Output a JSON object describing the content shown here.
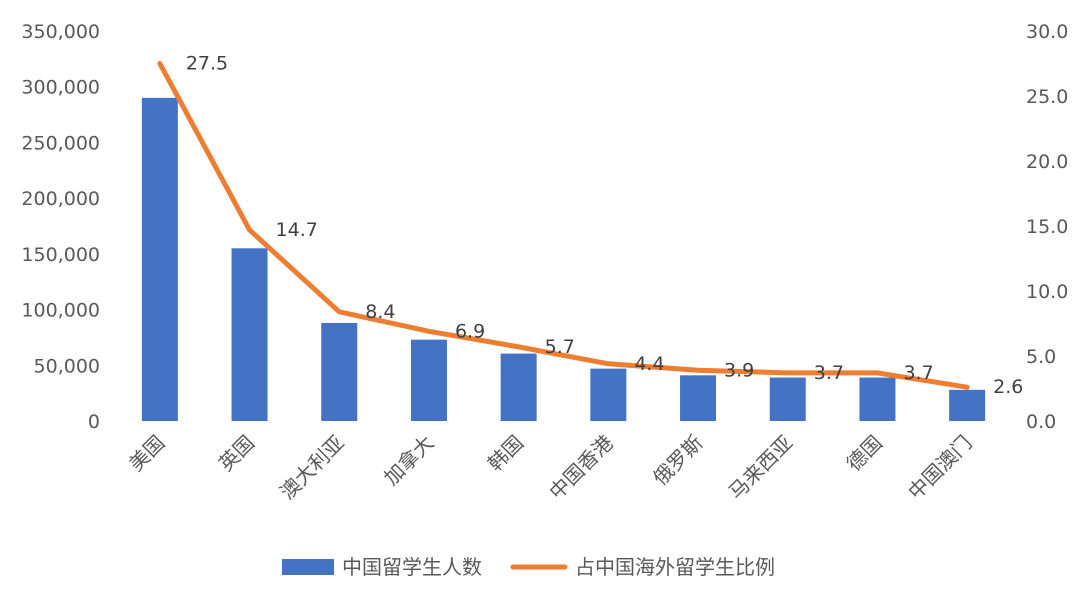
{
  "chart_data": {
    "type": "bar+line",
    "categories": [
      "美国",
      "英国",
      "澳大利亚",
      "加拿大",
      "韩国",
      "中国香港",
      "俄罗斯",
      "马来西亚",
      "德国",
      "中国澳门"
    ],
    "series": [
      {
        "name": "中国留学生人数",
        "type": "bar",
        "axis": "left",
        "color": "#4472C4",
        "values": [
          290000,
          155000,
          88000,
          73000,
          60500,
          47000,
          41000,
          39000,
          39000,
          28000
        ]
      },
      {
        "name": "占中国海外留学生比例",
        "type": "line",
        "axis": "right",
        "color": "#ED7D31",
        "values": [
          27.5,
          14.7,
          8.4,
          6.9,
          5.7,
          4.4,
          3.9,
          3.7,
          3.7,
          2.6
        ],
        "data_labels": [
          "27.5",
          "14.7",
          "8.4",
          "6.9",
          "5.7",
          "4.4",
          "3.9",
          "3.7",
          "3.7",
          "2.6"
        ]
      }
    ],
    "y_left": {
      "ylim": [
        0,
        350000
      ],
      "ticks": [
        0,
        50000,
        100000,
        150000,
        200000,
        250000,
        300000,
        350000
      ],
      "tick_labels": [
        "0",
        "50,000",
        "100,000",
        "150,000",
        "200,000",
        "250,000",
        "300,000",
        "350,000"
      ]
    },
    "y_right": {
      "ylim": [
        0,
        30
      ],
      "ticks": [
        0,
        5,
        10,
        15,
        20,
        25,
        30
      ],
      "tick_labels": [
        "0.0",
        "5.0",
        "10.0",
        "15.0",
        "20.0",
        "25.0",
        "30.0"
      ]
    },
    "grid": false,
    "legend": {
      "position": "bottom"
    },
    "title": ""
  }
}
